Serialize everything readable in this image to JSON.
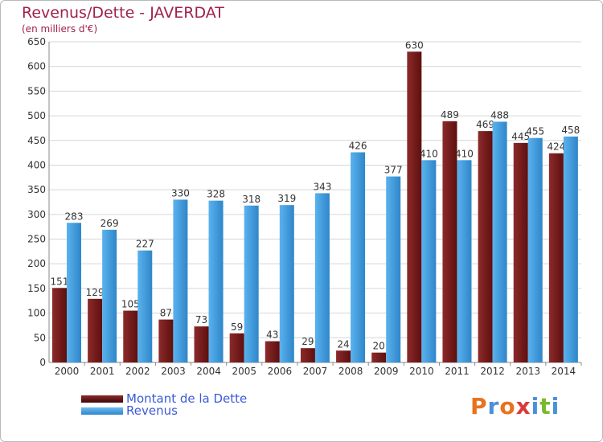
{
  "chart_data": {
    "type": "bar",
    "title": "Revenus/Dette - JAVERDAT",
    "subtitle": "(en milliers d'€)",
    "categories": [
      "2000",
      "2001",
      "2002",
      "2003",
      "2004",
      "2005",
      "2006",
      "2007",
      "2008",
      "2009",
      "2010",
      "2011",
      "2012",
      "2013",
      "2014"
    ],
    "series": [
      {
        "name": "Montant de la Dette",
        "color": "#7b1e1e",
        "values": [
          151,
          129,
          105,
          87,
          73,
          59,
          43,
          29,
          24,
          20,
          630,
          489,
          469,
          445,
          424
        ]
      },
      {
        "name": "Revenus",
        "color": "#4ea6e4",
        "values": [
          283,
          269,
          227,
          330,
          328,
          318,
          319,
          343,
          426,
          377,
          410,
          410,
          488,
          455,
          458
        ]
      }
    ],
    "ylim": [
      0,
      650
    ],
    "yticks": [
      0,
      50,
      100,
      150,
      200,
      250,
      300,
      350,
      400,
      450,
      500,
      550,
      600,
      650
    ],
    "grid": true,
    "legend": "bottom-left"
  },
  "logo": {
    "letters": [
      "P",
      "r",
      "o",
      "x",
      "i",
      "t",
      "i"
    ],
    "colors": [
      "#e8731c",
      "#4a90d9",
      "#e8731c",
      "#d93b3b",
      "#4a90d9",
      "#7ab82e",
      "#4a90d9"
    ]
  }
}
